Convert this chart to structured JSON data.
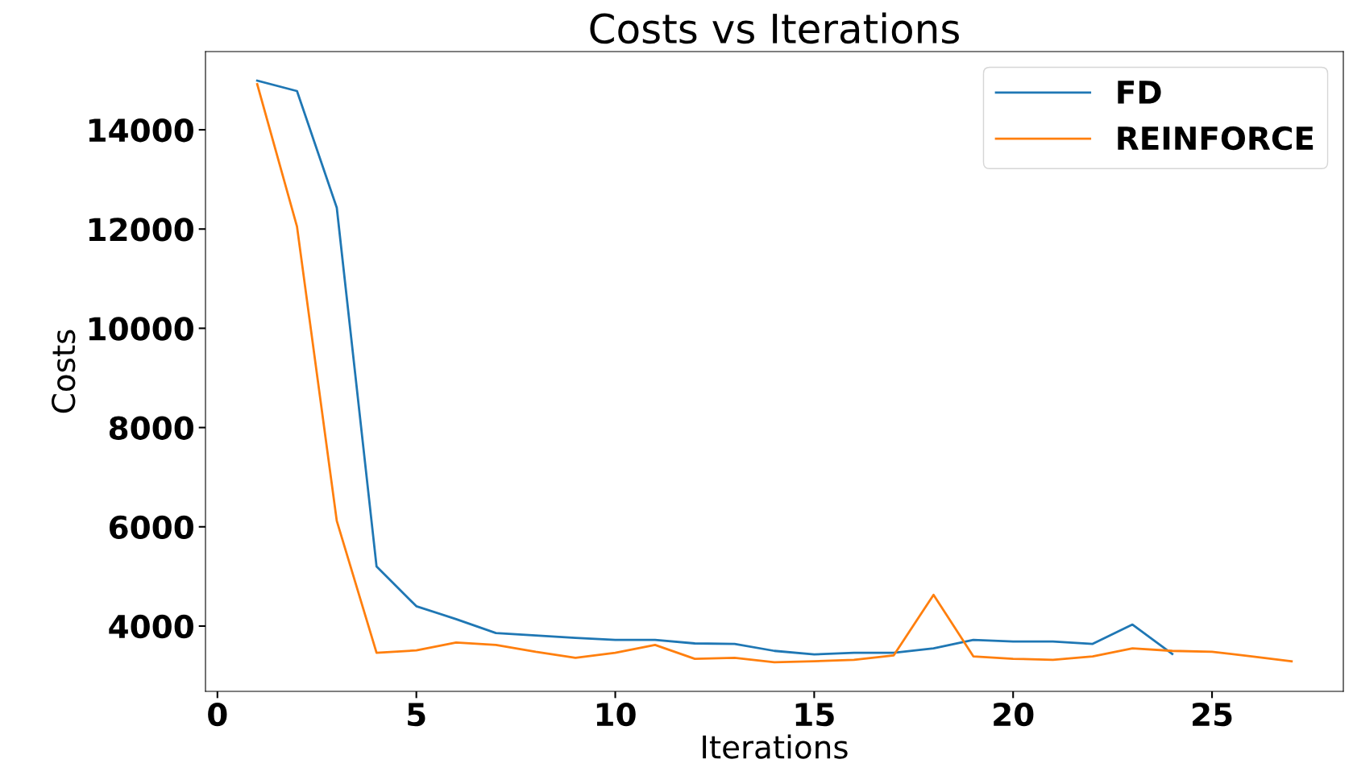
{
  "chart_data": {
    "type": "line",
    "title": "Costs vs Iterations",
    "xlabel": "Iterations",
    "ylabel": "Costs",
    "series": [
      {
        "name": "FD",
        "color": "#1f77b4",
        "x": [
          1,
          2,
          3,
          4,
          5,
          6,
          7,
          8,
          9,
          10,
          11,
          12,
          13,
          14,
          15,
          16,
          17,
          18,
          19,
          20,
          21,
          22,
          23,
          24
        ],
        "values": [
          14990,
          14780,
          12430,
          5200,
          4400,
          4140,
          3860,
          3810,
          3760,
          3720,
          3720,
          3650,
          3640,
          3500,
          3430,
          3460,
          3460,
          3550,
          3720,
          3690,
          3690,
          3640,
          4030,
          3440
        ]
      },
      {
        "name": "REINFORCE",
        "color": "#ff7f0e",
        "x": [
          1,
          2,
          3,
          4,
          5,
          6,
          7,
          8,
          9,
          10,
          11,
          12,
          13,
          14,
          15,
          16,
          17,
          18,
          19,
          20,
          21,
          22,
          23,
          24,
          25,
          26,
          27
        ],
        "values": [
          14920,
          12050,
          6120,
          3460,
          3510,
          3670,
          3620,
          3480,
          3360,
          3460,
          3620,
          3340,
          3360,
          3270,
          3290,
          3320,
          3410,
          4630,
          3390,
          3340,
          3320,
          3390,
          3550,
          3500,
          3480,
          3390,
          3290
        ]
      }
    ],
    "xlim": [
      -0.3,
      28.3
    ],
    "ylim": [
      2684,
      15576
    ],
    "xticks": [
      0,
      5,
      10,
      15,
      20,
      25
    ],
    "yticks": [
      4000,
      6000,
      8000,
      10000,
      12000,
      14000
    ],
    "legend": "top right",
    "grid": false,
    "marker": "none",
    "line_style": "solid"
  }
}
